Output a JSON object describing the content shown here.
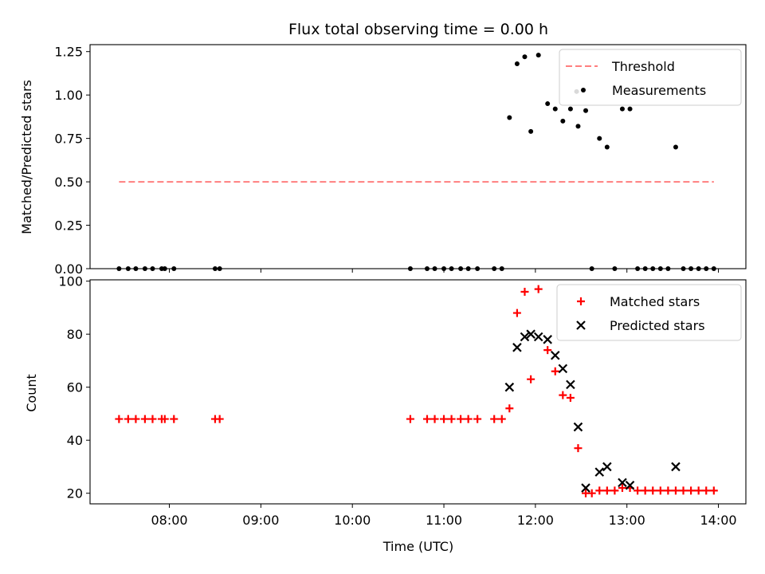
{
  "chart_data": [
    {
      "type": "scatter",
      "title": "Flux total observing time = 0.00 h",
      "xlabel": "",
      "ylabel": "Matched/Predicted stars",
      "xlim": [
        "07:08",
        "14:18"
      ],
      "ylim": [
        0,
        1.29
      ],
      "yticks": [
        "0.00",
        "0.25",
        "0.50",
        "0.75",
        "1.00",
        "1.25"
      ],
      "legend_position": "top-right",
      "series": [
        {
          "name": "Threshold",
          "style": "dashed-line",
          "color": "#ff7f7f",
          "points": [
            {
              "x": "07:27",
              "y": 0.5
            },
            {
              "x": "13:57",
              "y": 0.5
            }
          ]
        },
        {
          "name": "Measurements",
          "style": "dot",
          "color": "#000000",
          "points": [
            {
              "x": "07:27",
              "y": 0
            },
            {
              "x": "07:33",
              "y": 0
            },
            {
              "x": "07:38",
              "y": 0
            },
            {
              "x": "07:44",
              "y": 0
            },
            {
              "x": "07:49",
              "y": 0
            },
            {
              "x": "07:55",
              "y": 0
            },
            {
              "x": "07:57",
              "y": 0
            },
            {
              "x": "08:03",
              "y": 0
            },
            {
              "x": "08:30",
              "y": 0
            },
            {
              "x": "08:33",
              "y": 0
            },
            {
              "x": "10:38",
              "y": 0
            },
            {
              "x": "10:49",
              "y": 0
            },
            {
              "x": "10:54",
              "y": 0
            },
            {
              "x": "11:00",
              "y": 0
            },
            {
              "x": "11:05",
              "y": 0
            },
            {
              "x": "11:11",
              "y": 0
            },
            {
              "x": "11:16",
              "y": 0
            },
            {
              "x": "11:22",
              "y": 0
            },
            {
              "x": "11:33",
              "y": 0
            },
            {
              "x": "11:38",
              "y": 0
            },
            {
              "x": "11:43",
              "y": 0.87
            },
            {
              "x": "11:48",
              "y": 1.18
            },
            {
              "x": "11:53",
              "y": 1.22
            },
            {
              "x": "11:57",
              "y": 0.79
            },
            {
              "x": "12:02",
              "y": 1.23
            },
            {
              "x": "12:08",
              "y": 0.95
            },
            {
              "x": "12:13",
              "y": 0.92
            },
            {
              "x": "12:18",
              "y": 0.85
            },
            {
              "x": "12:23",
              "y": 0.92
            },
            {
              "x": "12:27",
              "y": 1.02
            },
            {
              "x": "12:28",
              "y": 0.82
            },
            {
              "x": "12:33",
              "y": 0.91
            },
            {
              "x": "12:37",
              "y": 0
            },
            {
              "x": "12:42",
              "y": 0.75
            },
            {
              "x": "12:47",
              "y": 0.7
            },
            {
              "x": "12:52",
              "y": 0
            },
            {
              "x": "12:57",
              "y": 0.92
            },
            {
              "x": "13:02",
              "y": 0.92
            },
            {
              "x": "13:07",
              "y": 0
            },
            {
              "x": "13:12",
              "y": 0
            },
            {
              "x": "13:17",
              "y": 0
            },
            {
              "x": "13:22",
              "y": 0
            },
            {
              "x": "13:27",
              "y": 0
            },
            {
              "x": "13:32",
              "y": 0.7
            },
            {
              "x": "13:37",
              "y": 0
            },
            {
              "x": "13:42",
              "y": 0
            },
            {
              "x": "13:47",
              "y": 0
            },
            {
              "x": "13:52",
              "y": 0
            },
            {
              "x": "13:57",
              "y": 0
            }
          ]
        }
      ]
    },
    {
      "type": "scatter",
      "title": "",
      "xlabel": "Time (UTC)",
      "ylabel": "Count",
      "xlim": [
        "07:08",
        "14:18"
      ],
      "ylim": [
        16,
        100.5
      ],
      "yticks": [
        "20",
        "40",
        "60",
        "80",
        "100"
      ],
      "xticks": [
        "08:00",
        "09:00",
        "10:00",
        "11:00",
        "12:00",
        "13:00",
        "14:00"
      ],
      "legend_position": "top-right",
      "series": [
        {
          "name": "Matched stars",
          "style": "plus",
          "color": "#ff0000",
          "points": [
            {
              "x": "07:27",
              "y": 48
            },
            {
              "x": "07:33",
              "y": 48
            },
            {
              "x": "07:38",
              "y": 48
            },
            {
              "x": "07:44",
              "y": 48
            },
            {
              "x": "07:49",
              "y": 48
            },
            {
              "x": "07:55",
              "y": 48
            },
            {
              "x": "07:57",
              "y": 48
            },
            {
              "x": "08:03",
              "y": 48
            },
            {
              "x": "08:30",
              "y": 48
            },
            {
              "x": "08:33",
              "y": 48
            },
            {
              "x": "10:38",
              "y": 48
            },
            {
              "x": "10:49",
              "y": 48
            },
            {
              "x": "10:54",
              "y": 48
            },
            {
              "x": "11:00",
              "y": 48
            },
            {
              "x": "11:05",
              "y": 48
            },
            {
              "x": "11:11",
              "y": 48
            },
            {
              "x": "11:16",
              "y": 48
            },
            {
              "x": "11:22",
              "y": 48
            },
            {
              "x": "11:33",
              "y": 48
            },
            {
              "x": "11:38",
              "y": 48
            },
            {
              "x": "11:43",
              "y": 52
            },
            {
              "x": "11:48",
              "y": 88
            },
            {
              "x": "11:53",
              "y": 96
            },
            {
              "x": "11:57",
              "y": 63
            },
            {
              "x": "12:02",
              "y": 97
            },
            {
              "x": "12:08",
              "y": 74
            },
            {
              "x": "12:13",
              "y": 66
            },
            {
              "x": "12:18",
              "y": 57
            },
            {
              "x": "12:23",
              "y": 56
            },
            {
              "x": "12:28",
              "y": 37
            },
            {
              "x": "12:33",
              "y": 20
            },
            {
              "x": "12:37",
              "y": 20
            },
            {
              "x": "12:42",
              "y": 21
            },
            {
              "x": "12:47",
              "y": 21
            },
            {
              "x": "12:52",
              "y": 21
            },
            {
              "x": "12:57",
              "y": 22
            },
            {
              "x": "13:02",
              "y": 22
            },
            {
              "x": "13:07",
              "y": 21
            },
            {
              "x": "13:12",
              "y": 21
            },
            {
              "x": "13:17",
              "y": 21
            },
            {
              "x": "13:22",
              "y": 21
            },
            {
              "x": "13:27",
              "y": 21
            },
            {
              "x": "13:32",
              "y": 21
            },
            {
              "x": "13:37",
              "y": 21
            },
            {
              "x": "13:42",
              "y": 21
            },
            {
              "x": "13:47",
              "y": 21
            },
            {
              "x": "13:52",
              "y": 21
            },
            {
              "x": "13:57",
              "y": 21
            }
          ]
        },
        {
          "name": "Predicted stars",
          "style": "cross",
          "color": "#000000",
          "points": [
            {
              "x": "11:43",
              "y": 60
            },
            {
              "x": "11:48",
              "y": 75
            },
            {
              "x": "11:53",
              "y": 79
            },
            {
              "x": "11:57",
              "y": 80
            },
            {
              "x": "12:02",
              "y": 79
            },
            {
              "x": "12:08",
              "y": 78
            },
            {
              "x": "12:13",
              "y": 72
            },
            {
              "x": "12:18",
              "y": 67
            },
            {
              "x": "12:23",
              "y": 61
            },
            {
              "x": "12:28",
              "y": 45
            },
            {
              "x": "12:33",
              "y": 22
            },
            {
              "x": "12:42",
              "y": 28
            },
            {
              "x": "12:47",
              "y": 30
            },
            {
              "x": "12:57",
              "y": 24
            },
            {
              "x": "13:02",
              "y": 23
            },
            {
              "x": "13:32",
              "y": 30
            }
          ]
        }
      ]
    }
  ]
}
